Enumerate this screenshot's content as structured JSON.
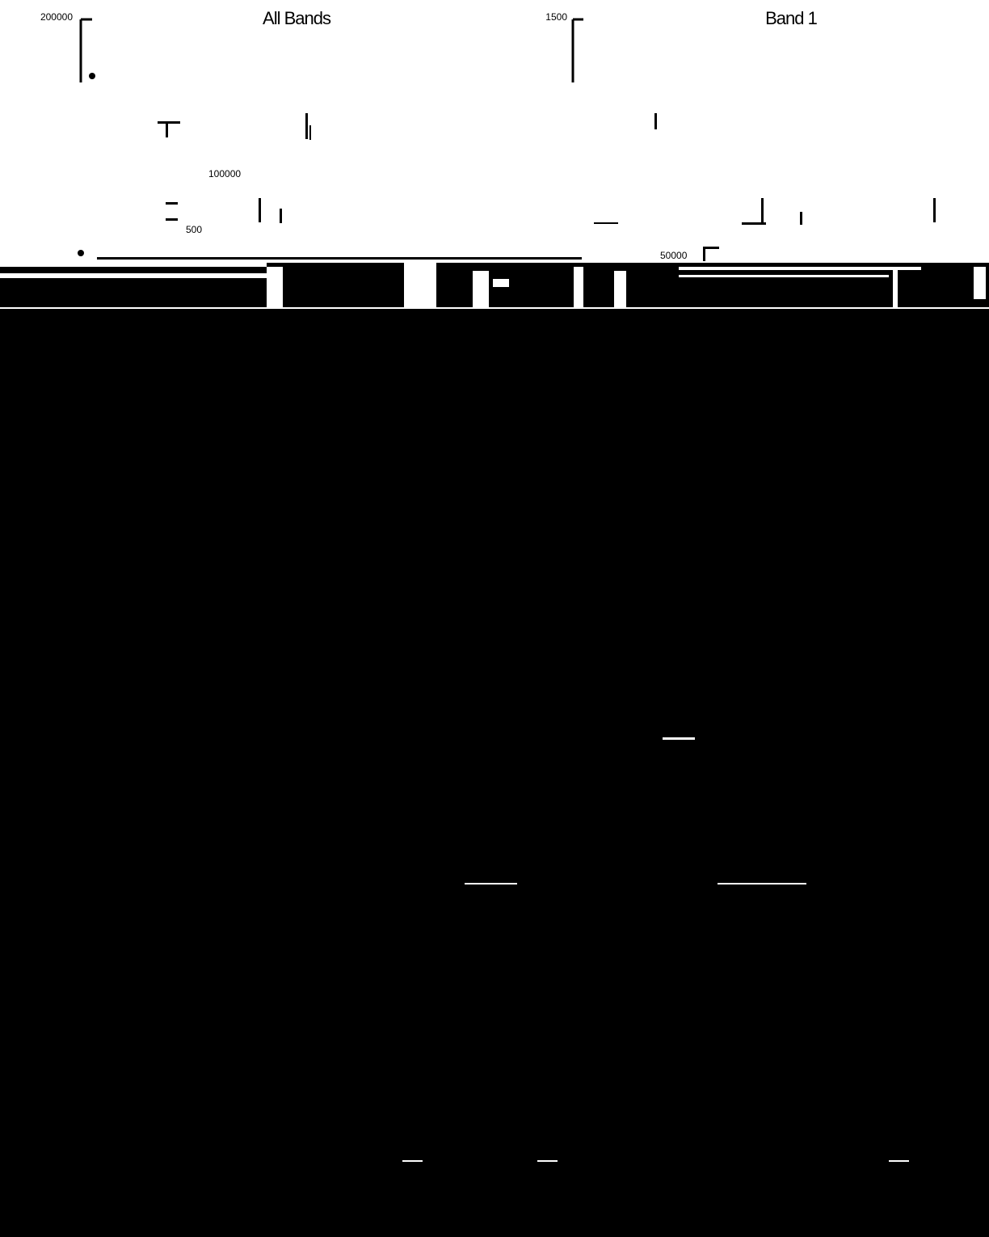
{
  "panels": [
    {
      "title": "All Bands",
      "labels": [
        "200000",
        "100000",
        "500"
      ]
    },
    {
      "title": "Band 1",
      "labels": [
        "1500",
        "50000"
      ]
    }
  ]
}
